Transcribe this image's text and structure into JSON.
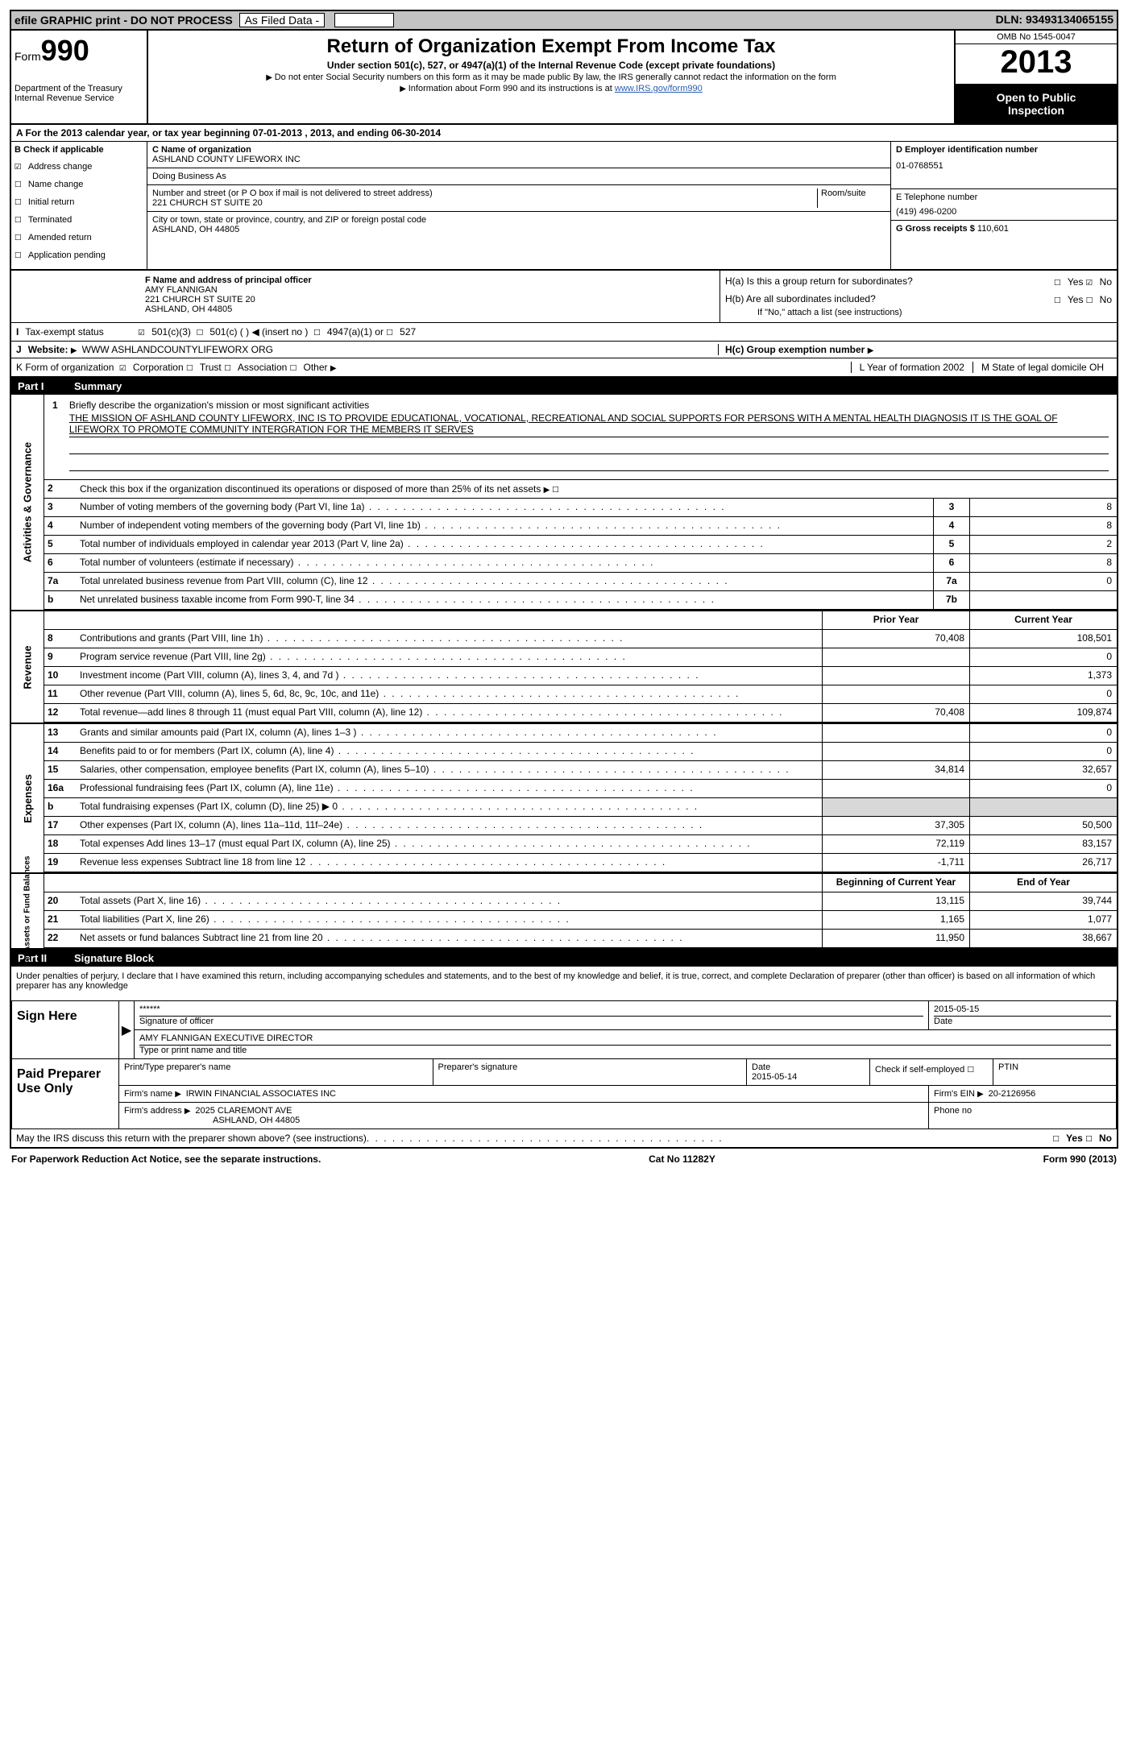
{
  "topbar": {
    "efile": "efile GRAPHIC print - DO NOT PROCESS",
    "asfiled": "As Filed Data -",
    "dln_label": "DLN:",
    "dln": "93493134065155"
  },
  "header": {
    "form_label": "Form",
    "form_num": "990",
    "dept": "Department of the Treasury",
    "irs": "Internal Revenue Service",
    "title": "Return of Organization Exempt From Income Tax",
    "sub1": "Under section 501(c), 527, or 4947(a)(1) of the Internal Revenue Code (except private foundations)",
    "sub2": "Do not enter Social Security numbers on this form as it may be made public  By law, the IRS generally cannot redact the information on the form",
    "sub3": "Information about Form 990 and its instructions is at ",
    "link": "www.IRS.gov/form990",
    "omb": "OMB No  1545-0047",
    "year": "2013",
    "open1": "Open to Public",
    "open2": "Inspection"
  },
  "rowA": "A  For the 2013 calendar year, or tax year beginning 07-01-2013     , 2013, and ending 06-30-2014",
  "colB": {
    "title": "B  Check if applicable",
    "items": [
      "Address change",
      "Name change",
      "Initial return",
      "Terminated",
      "Amended return",
      "Application pending"
    ],
    "checked_index": 0
  },
  "colC": {
    "name_lbl": "C Name of organization",
    "name": "ASHLAND COUNTY LIFEWORX INC",
    "dba_lbl": "Doing Business As",
    "dba": "",
    "addr_lbl": "Number and street (or P O  box if mail is not delivered to street address)",
    "room_lbl": "Room/suite",
    "addr": "221 CHURCH ST SUITE 20",
    "city_lbl": "City or town, state or province, country, and ZIP or foreign postal code",
    "city": "ASHLAND, OH  44805"
  },
  "colD": {
    "ein_lbl": "D Employer identification number",
    "ein": "01-0768551",
    "tel_lbl": "E Telephone number",
    "tel": "(419) 496-0200",
    "gross_lbl": "G Gross receipts $",
    "gross": "110,601"
  },
  "officer": {
    "lbl": "F  Name and address of principal officer",
    "name": "AMY FLANNIGAN",
    "addr1": "221 CHURCH ST SUITE 20",
    "addr2": "ASHLAND, OH  44805",
    "ha": "H(a)  Is this a group return for subordinates?",
    "hb": "H(b)  Are all subordinates included?",
    "hb_note": "If \"No,\" attach a list  (see instructions)",
    "hc": "H(c)  Group exemption number",
    "yes": "Yes",
    "no": "No"
  },
  "lineI": {
    "lbl": "I",
    "txt": "Tax-exempt status",
    "opts": [
      "501(c)(3)",
      "501(c) (  )",
      "(insert no )",
      "4947(a)(1) or",
      "527"
    ]
  },
  "lineJ": {
    "lbl": "J",
    "txt": "Website:",
    "val": "WWW ASHLANDCOUNTYLIFEWORX ORG"
  },
  "lineK": {
    "lbl": "K Form of organization",
    "opts": [
      "Corporation",
      "Trust",
      "Association",
      "Other"
    ],
    "L": "L Year of formation  2002",
    "M": "M State of legal domicile  OH"
  },
  "part1": {
    "num": "Part I",
    "title": "Summary"
  },
  "mission": {
    "num": "1",
    "lbl": "Briefly describe the organization's mission or most significant activities",
    "text": "THE MISSION OF ASHLAND COUNTY LIFEWORX, INC  IS TO PROVIDE EDUCATIONAL, VOCATIONAL, RECREATIONAL AND SOCIAL SUPPORTS FOR PERSONS WITH A MENTAL HEALTH DIAGNOSIS  IT IS THE GOAL OF LIFEWORX TO PROMOTE COMMUNITY INTERGRATION FOR THE MEMBERS IT SERVES"
  },
  "line2": {
    "num": "2",
    "txt": "Check this box       if the organization discontinued its operations or disposed of more than 25% of its net assets"
  },
  "gov_lines": [
    {
      "n": "3",
      "t": "Number of voting members of the governing body (Part VI, line 1a)",
      "c": "3",
      "v": "8"
    },
    {
      "n": "4",
      "t": "Number of independent voting members of the governing body (Part VI, line 1b)",
      "c": "4",
      "v": "8"
    },
    {
      "n": "5",
      "t": "Total number of individuals employed in calendar year 2013 (Part V, line 2a)",
      "c": "5",
      "v": "2"
    },
    {
      "n": "6",
      "t": "Total number of volunteers (estimate if necessary)",
      "c": "6",
      "v": "8"
    },
    {
      "n": "7a",
      "t": "Total unrelated business revenue from Part VIII, column (C), line 12",
      "c": "7a",
      "v": "0"
    },
    {
      "n": "b",
      "t": "Net unrelated business taxable income from Form 990-T, line 34",
      "c": "7b",
      "v": ""
    }
  ],
  "rev_head": {
    "prior": "Prior Year",
    "curr": "Current Year"
  },
  "rev_lines": [
    {
      "n": "8",
      "t": "Contributions and grants (Part VIII, line 1h)",
      "p": "70,408",
      "c": "108,501"
    },
    {
      "n": "9",
      "t": "Program service revenue (Part VIII, line 2g)",
      "p": "",
      "c": "0"
    },
    {
      "n": "10",
      "t": "Investment income (Part VIII, column (A), lines 3, 4, and 7d )",
      "p": "",
      "c": "1,373"
    },
    {
      "n": "11",
      "t": "Other revenue (Part VIII, column (A), lines 5, 6d, 8c, 9c, 10c, and 11e)",
      "p": "",
      "c": "0"
    },
    {
      "n": "12",
      "t": "Total revenue—add lines 8 through 11 (must equal Part VIII, column (A), line 12)",
      "p": "70,408",
      "c": "109,874"
    }
  ],
  "exp_lines": [
    {
      "n": "13",
      "t": "Grants and similar amounts paid (Part IX, column (A), lines 1–3 )",
      "p": "",
      "c": "0"
    },
    {
      "n": "14",
      "t": "Benefits paid to or for members (Part IX, column (A), line 4)",
      "p": "",
      "c": "0"
    },
    {
      "n": "15",
      "t": "Salaries, other compensation, employee benefits (Part IX, column (A), lines 5–10)",
      "p": "34,814",
      "c": "32,657"
    },
    {
      "n": "16a",
      "t": "Professional fundraising fees (Part IX, column (A), line 11e)",
      "p": "",
      "c": "0"
    },
    {
      "n": "b",
      "t": "Total fundraising expenses (Part IX, column (D), line 25)  ▶ 0",
      "p": "shade",
      "c": "shade"
    },
    {
      "n": "17",
      "t": "Other expenses (Part IX, column (A), lines 11a–11d, 11f–24e)",
      "p": "37,305",
      "c": "50,500"
    },
    {
      "n": "18",
      "t": "Total expenses  Add lines 13–17 (must equal Part IX, column (A), line 25)",
      "p": "72,119",
      "c": "83,157"
    },
    {
      "n": "19",
      "t": "Revenue less expenses  Subtract line 18 from line 12",
      "p": "-1,711",
      "c": "26,717"
    }
  ],
  "na_head": {
    "prior": "Beginning of Current Year",
    "curr": "End of Year"
  },
  "na_lines": [
    {
      "n": "20",
      "t": "Total assets (Part X, line 16)",
      "p": "13,115",
      "c": "39,744"
    },
    {
      "n": "21",
      "t": "Total liabilities (Part X, line 26)",
      "p": "1,165",
      "c": "1,077"
    },
    {
      "n": "22",
      "t": "Net assets or fund balances  Subtract line 21 from line 20",
      "p": "11,950",
      "c": "38,667"
    }
  ],
  "part2": {
    "num": "Part II",
    "title": "Signature Block"
  },
  "perjury": "Under penalties of perjury, I declare that I have examined this return, including accompanying schedules and statements, and to the best of my knowledge and belief, it is true, correct, and complete  Declaration of preparer (other than officer) is based on all information of which preparer has any knowledge",
  "sign": {
    "here": "Sign Here",
    "stars": "******",
    "sig_lbl": "Signature of officer",
    "date": "2015-05-15",
    "date_lbl": "Date",
    "name": "AMY FLANNIGAN  EXECUTIVE DIRECTOR",
    "name_lbl": "Type or print name and title"
  },
  "preparer": {
    "here": "Paid Preparer Use Only",
    "h1": "Print/Type preparer's name",
    "h2": "Preparer's signature",
    "h3": "Date",
    "date": "2015-05-14",
    "h4": "Check       if self-employed",
    "h5": "PTIN",
    "firm_lbl": "Firm's name   ",
    "firm": "IRWIN FINANCIAL ASSOCIATES INC",
    "ein_lbl": "Firm's EIN ",
    "ein": "20-2126956",
    "addr_lbl": "Firm's address ",
    "addr1": "2025 CLAREMONT AVE",
    "addr2": "ASHLAND, OH  44805",
    "phone_lbl": "Phone no"
  },
  "discuss": "May the IRS discuss this return with the preparer shown above? (see instructions)",
  "footer": {
    "left": "For Paperwork Reduction Act Notice, see the separate instructions.",
    "mid": "Cat No  11282Y",
    "right": "Form 990 (2013)"
  },
  "labels": {
    "gov": "Activities & Governance",
    "rev": "Revenue",
    "exp": "Expenses",
    "na": "Net Assets or Fund Balances"
  }
}
